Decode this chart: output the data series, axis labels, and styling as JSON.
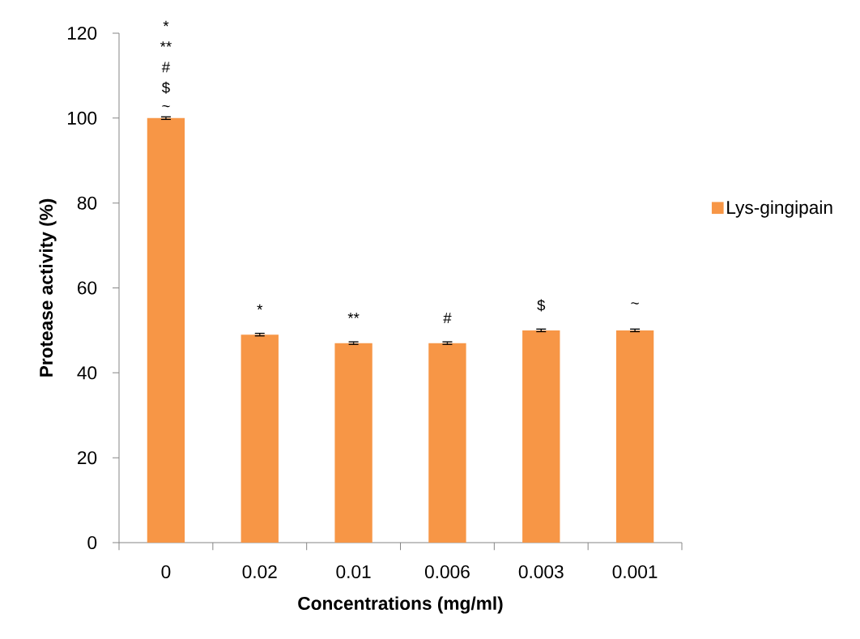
{
  "chart_data": {
    "type": "bar",
    "xlabel": "Concentrations (mg/ml)",
    "ylabel": "Protease activity (%)",
    "categories": [
      "0",
      "0.02",
      "0.01",
      "0.006",
      "0.003",
      "0.001"
    ],
    "series": [
      {
        "name": "Lys-gingipain",
        "color": "#f79646",
        "values": [
          100,
          49,
          47,
          47,
          50,
          50
        ],
        "errors": [
          0.3,
          0.3,
          0.3,
          0.3,
          0.3,
          0.3
        ]
      }
    ],
    "ylim": [
      0,
      120
    ],
    "yticks": [
      0,
      20,
      40,
      60,
      80,
      100,
      120
    ],
    "legend": "right",
    "annotations": [
      "*",
      "**",
      "#",
      "$",
      "~",
      "*",
      "**",
      "#",
      "$",
      "~"
    ]
  }
}
